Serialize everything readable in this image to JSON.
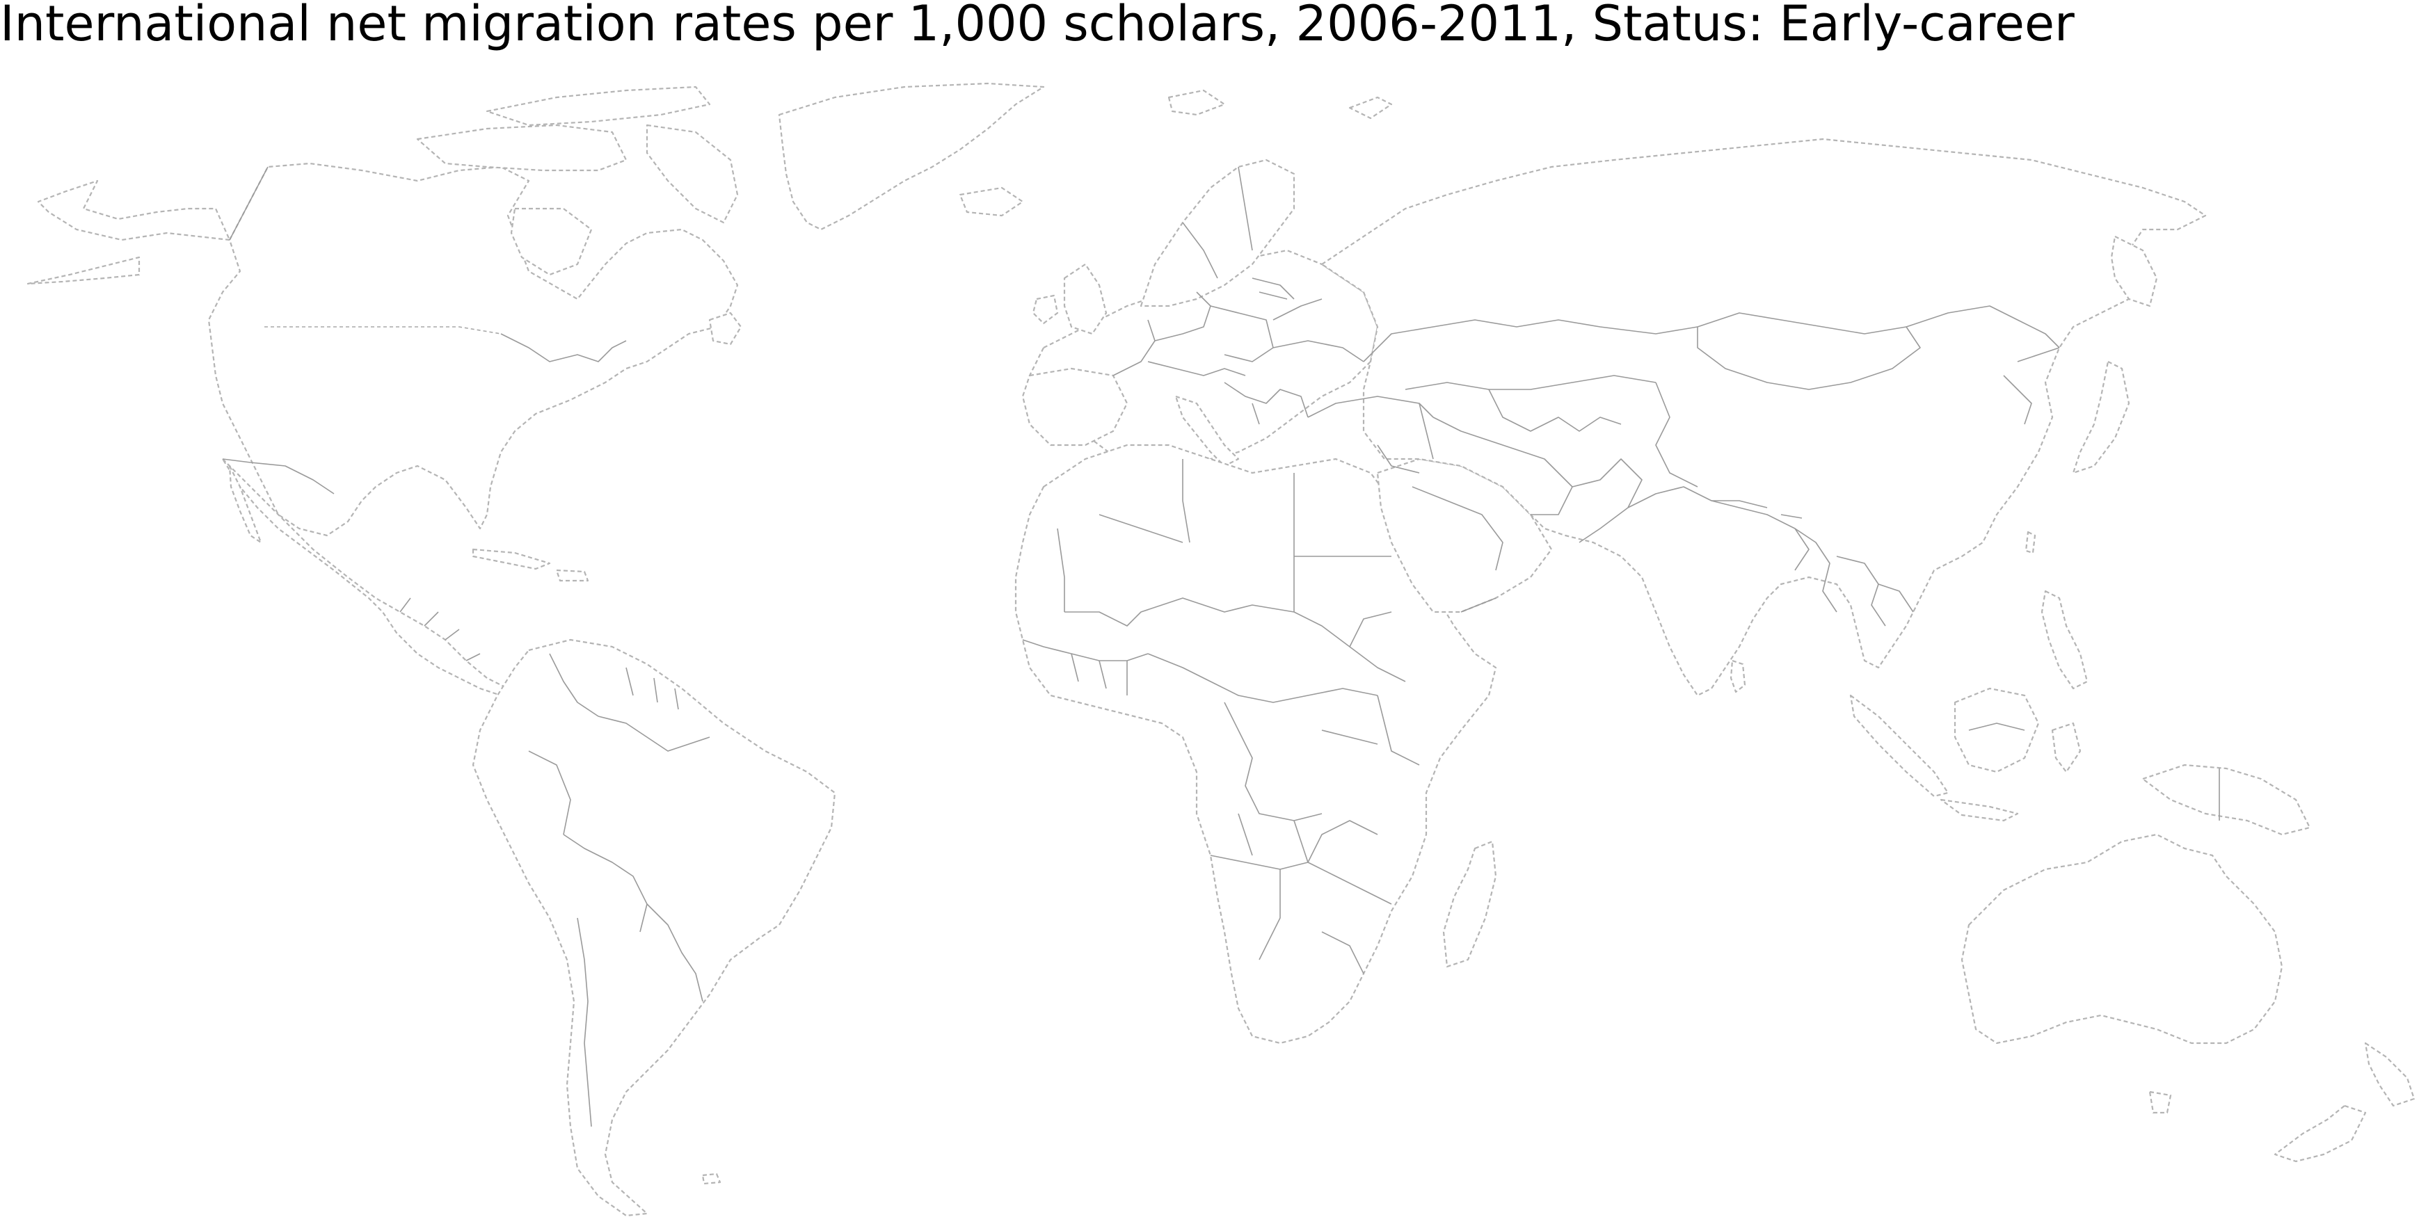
{
  "map": {
    "title": "International net migration rates per 1,000 scholars, 2006-2011, Status: Early-career",
    "projection": "equirectangular",
    "land_fill": "#ffffff",
    "border_color": "#9a9a9a",
    "coastline_style": "dashed",
    "legend": null
  }
}
